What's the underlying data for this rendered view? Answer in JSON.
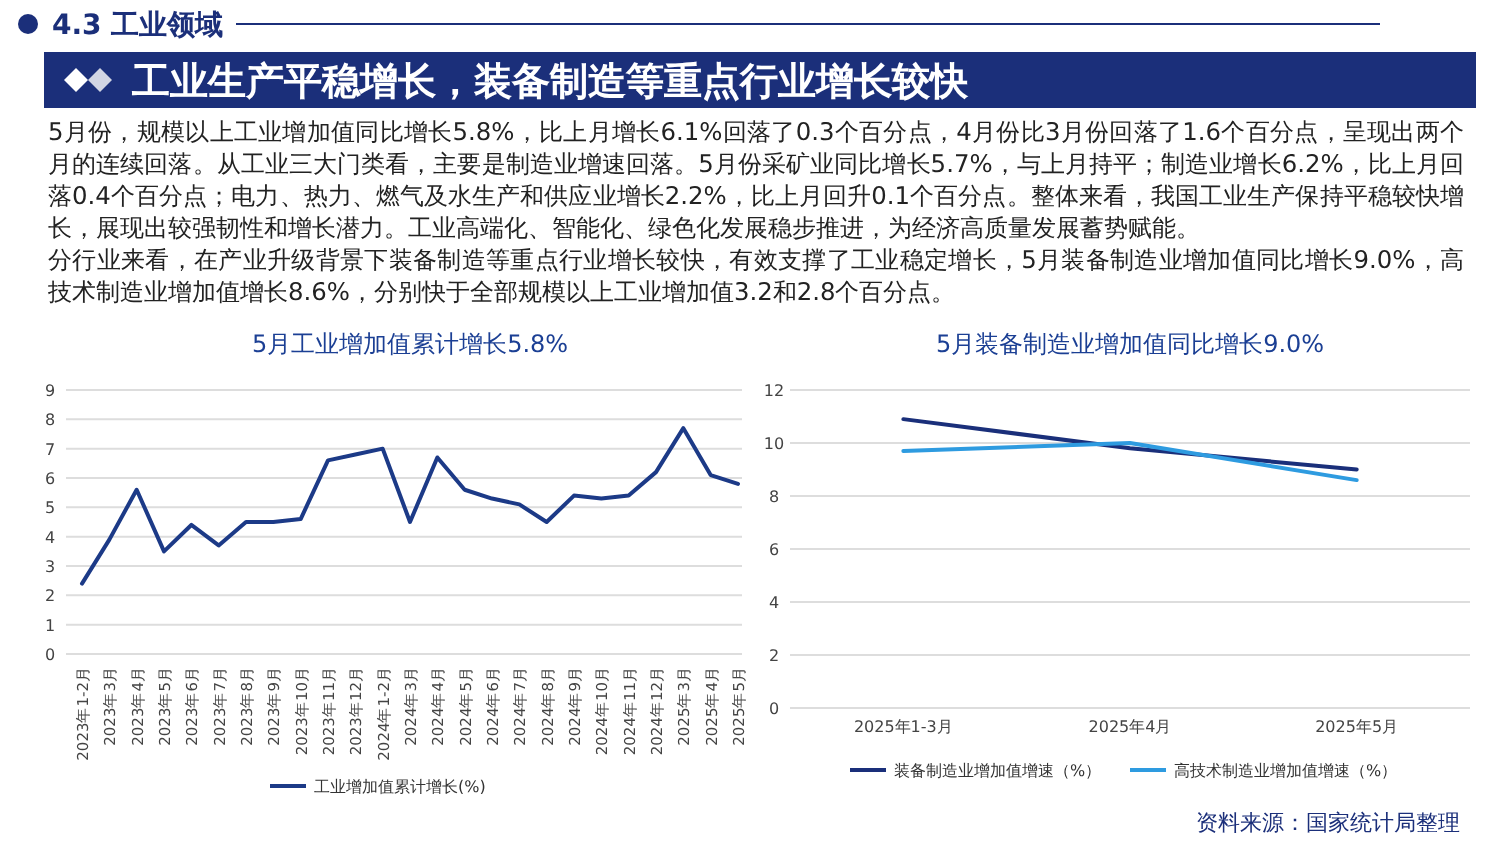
{
  "chart_data": [
    {
      "type": "other",
      "subtitle": "4.3 工业领域",
      "title": "工业生产平稳增长，装备制造等重点行业增长较快",
      "annotations": [
        "5月份，规模以上工业增加值同比增长5.8%，比上月增长6.1%回落了0.3个百分点，4月份比3月份回落了1.6个百分点，呈现出两个月的连续回落。从工业三大门类看，主要是制造业增速回落。5月份采矿业同比增长5.7%，与上月持平；制造业增长6.2%，比上月回落0.4个百分点；电力、热力、燃气及水生产和供应业增长2.2%，比上月回升0.1个百分点。整体来看，我国工业生产保持平稳较快增长，展现出较强韧性和增长潜力。工业高端化、智能化、绿色化发展稳步推进，为经济高质量发展蓄势赋能。",
        "分行业来看，在产业升级背景下装备制造等重点行业增长较快，有效支撑了工业稳定增长，5月装备制造业增加值同比增长9.0%，高技术制造业增加值增长8.6%，分别快于全部规模以上工业增加值3.2和2.8个百分点。",
        "资料来源：国家统计局整理"
      ]
    },
    {
      "type": "line",
      "title": "5月工业增加值累计增长5.8%",
      "categories": [
        "2023年1-2月",
        "2023年3月",
        "2023年4月",
        "2023年5月",
        "2023年6月",
        "2023年7月",
        "2023年8月",
        "2023年9月",
        "2023年10月",
        "2023年11月",
        "2023年12月",
        "2024年1-2月",
        "2024年3月",
        "2024年4月",
        "2024年5月",
        "2024年6月",
        "2024年7月",
        "2024年8月",
        "2024年9月",
        "2024年10月",
        "2024年11月",
        "2024年12月",
        "2025年3月",
        "2025年4月",
        "2025年5月"
      ],
      "series": [
        {
          "name": "工业增加值累计增长(%)",
          "color": "#1c3a87",
          "values": [
            2.4,
            3.9,
            5.6,
            3.5,
            4.4,
            3.7,
            4.5,
            4.5,
            4.6,
            6.6,
            6.8,
            7.0,
            4.5,
            6.7,
            5.6,
            5.3,
            5.1,
            4.5,
            5.4,
            5.3,
            5.4,
            6.2,
            7.7,
            6.1,
            5.8
          ]
        }
      ],
      "ylim": [
        0,
        9
      ],
      "yticks": [
        0,
        1,
        2,
        3,
        4,
        5,
        6,
        7,
        8,
        9
      ],
      "grid": "y",
      "legend": "bottom"
    },
    {
      "type": "line",
      "title": "5月装备制造业增加值同比增长9.0%",
      "categories": [
        "2025年1-3月",
        "2025年4月",
        "2025年5月"
      ],
      "series": [
        {
          "name": "装备制造业增加值增速（%）",
          "color": "#1a2f7a",
          "values": [
            10.9,
            9.8,
            9.0
          ]
        },
        {
          "name": "高技术制造业增加值增速（%）",
          "color": "#2e9be0",
          "values": [
            9.7,
            10.0,
            8.6
          ]
        }
      ],
      "ylim": [
        0,
        12
      ],
      "yticks": [
        0,
        2,
        4,
        6,
        8,
        10,
        12
      ],
      "grid": "y",
      "legend": "bottom"
    }
  ]
}
